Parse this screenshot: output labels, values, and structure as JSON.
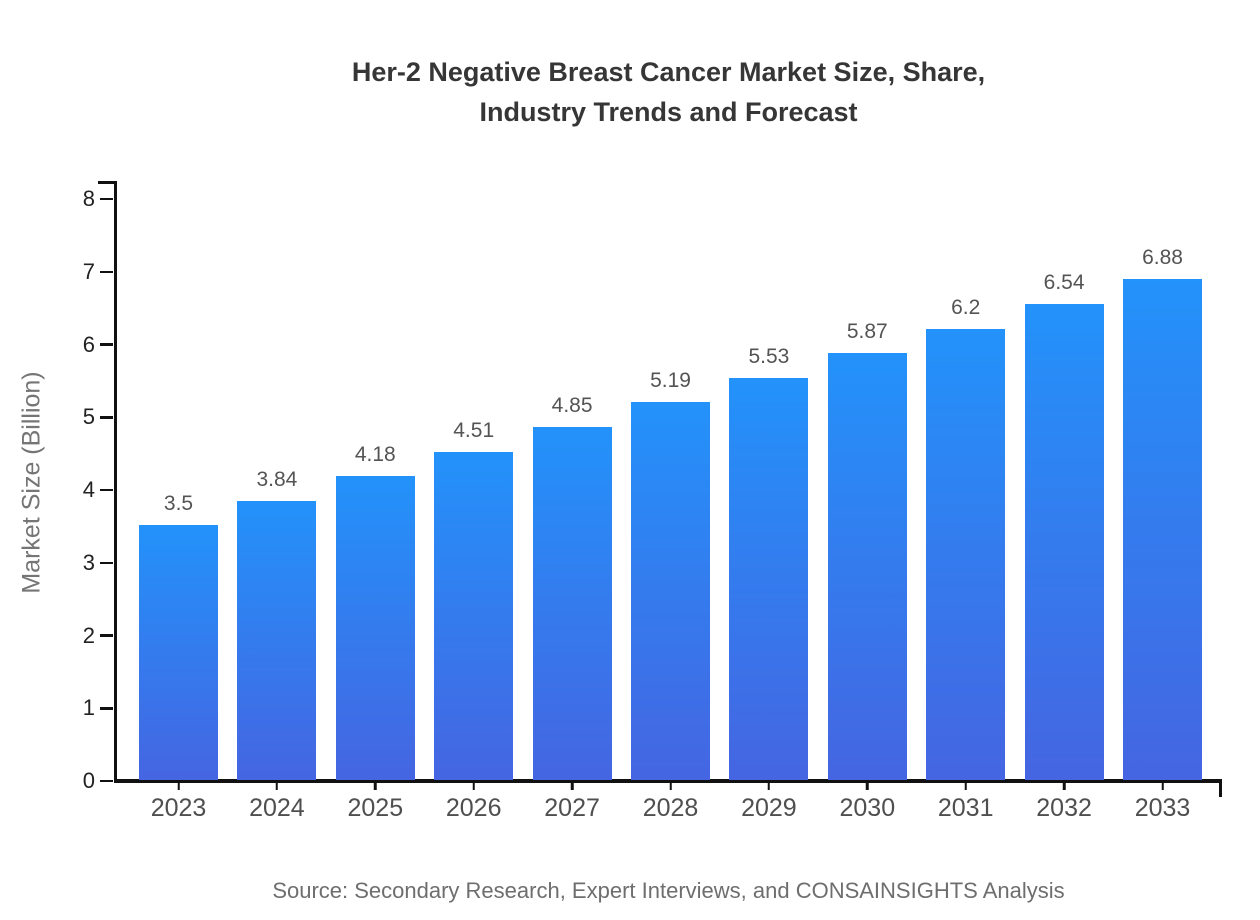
{
  "chart_data": {
    "type": "bar",
    "title": "Her-2 Negative Breast Cancer Market Size, Share, Industry Trends and Forecast",
    "title_lines": [
      "Her-2 Negative Breast Cancer Market Size, Share,",
      "Industry Trends and Forecast"
    ],
    "categories": [
      "2023",
      "2024",
      "2025",
      "2026",
      "2027",
      "2028",
      "2029",
      "2030",
      "2031",
      "2032",
      "2033"
    ],
    "values": [
      3.5,
      3.84,
      4.18,
      4.51,
      4.85,
      5.19,
      5.53,
      5.87,
      6.2,
      6.54,
      6.88
    ],
    "value_labels": [
      "3.5",
      "3.84",
      "4.18",
      "4.51",
      "4.85",
      "5.19",
      "5.53",
      "5.87",
      "6.2",
      "6.54",
      "6.88"
    ],
    "xlabel": "",
    "ylabel": "Market Size (Billion)",
    "ylim": [
      0,
      8
    ],
    "yticks": [
      0,
      1,
      2,
      3,
      4,
      5,
      6,
      7,
      8
    ],
    "grid": false,
    "legend_visible": false,
    "colors": {
      "bar_gradient_top": "#2392fa",
      "bar_gradient_bottom": "#4565e2",
      "axis": "#111111",
      "title_text": "#363636",
      "tick_text": "#222222",
      "label_text": "#545454"
    }
  },
  "footer": {
    "source": "Source: Secondary Research, Expert Interviews, and CONSAINSIGHTS Analysis"
  }
}
